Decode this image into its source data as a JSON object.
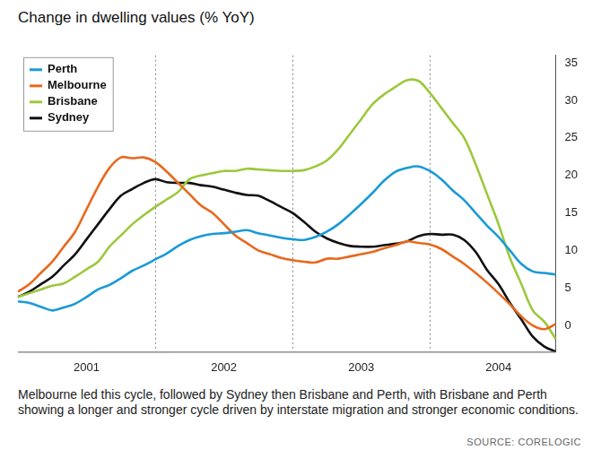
{
  "chart_data": {
    "type": "line",
    "title": "Change in dwelling values (% YoY)",
    "caption": "Melbourne led this cycle, followed by Sydney then Brisbane and Perth, with Brisbane and Perth showing a longer and stronger cycle driven by interstate migration and stronger economic conditions.",
    "source": "SOURCE: CORELOGIC",
    "categories": [
      null,
      null,
      null,
      null,
      null,
      null,
      "2001",
      null,
      null,
      null,
      null,
      null,
      null,
      null,
      null,
      null,
      null,
      null,
      "2002",
      null,
      null,
      null,
      null,
      null,
      null,
      null,
      null,
      null,
      null,
      null,
      "2003",
      null,
      null,
      null,
      null,
      null,
      null,
      null,
      null,
      null,
      null,
      null,
      "2004",
      null,
      null,
      null,
      null,
      null
    ],
    "series": [
      {
        "name": "Perth",
        "color": "#1a9ad6",
        "values": [
          3.2,
          3,
          2.5,
          2,
          2.4,
          2.9,
          3.8,
          4.8,
          5.4,
          6.3,
          7.3,
          8,
          8.8,
          9.6,
          10.6,
          11.4,
          11.9,
          12.2,
          12.3,
          12.5,
          12.7,
          12.3,
          12,
          11.7,
          11.5,
          11.4,
          11.8,
          12.5,
          13.5,
          14.8,
          16.2,
          17.7,
          19.3,
          20.5,
          21,
          21.2,
          20.6,
          19.5,
          18,
          16.7,
          15,
          13.3,
          11.8,
          10,
          8.2,
          7.2,
          7,
          6.8
        ]
      },
      {
        "name": "Melbourne",
        "color": "#e8691e",
        "values": [
          4.5,
          5.5,
          7,
          8.5,
          10.5,
          12.5,
          15.5,
          18.5,
          21,
          22.4,
          22.3,
          22.4,
          21.8,
          20.5,
          19,
          17.5,
          16,
          15,
          13.5,
          12,
          11,
          10,
          9.5,
          9,
          8.7,
          8.5,
          8.4,
          8.9,
          8.9,
          9.2,
          9.5,
          9.8,
          10.3,
          10.7,
          11.2,
          11,
          10.8,
          10.2,
          9.2,
          8.2,
          7,
          5.7,
          4.3,
          2.8,
          1.2,
          0,
          -0.5,
          0.2
        ]
      },
      {
        "name": "Brisbane",
        "color": "#9cc83c",
        "values": [
          3.8,
          4.3,
          4.8,
          5.3,
          5.6,
          6.5,
          7.5,
          8.5,
          10.5,
          12,
          13.5,
          14.7,
          15.8,
          16.8,
          17.8,
          19.5,
          20,
          20.3,
          20.6,
          20.6,
          20.9,
          20.8,
          20.7,
          20.6,
          20.6,
          20.7,
          21.2,
          22,
          23.5,
          25.5,
          27.5,
          29.5,
          30.8,
          31.8,
          32.7,
          32.6,
          31,
          29,
          27,
          25,
          21.5,
          17.5,
          13.5,
          9,
          5.5,
          2,
          0.5,
          -1.8
        ]
      },
      {
        "name": "Sydney",
        "color": "#111111",
        "values": [
          3.8,
          4.5,
          5.5,
          6.5,
          8,
          9.5,
          11.5,
          13.5,
          15.5,
          17.3,
          18.2,
          19,
          19.5,
          19.1,
          19,
          19,
          18.7,
          18.5,
          18.1,
          17.7,
          17.4,
          17.3,
          16.6,
          15.8,
          15,
          13.8,
          12.5,
          11.6,
          11,
          10.6,
          10.5,
          10.5,
          10.7,
          10.9,
          11.2,
          11.9,
          12.2,
          12.1,
          12.1,
          11.4,
          9.8,
          7.4,
          5.5,
          3,
          0.8,
          -1.5,
          -2.8,
          -3.5
        ]
      }
    ],
    "ylim": [
      -3.5,
      36
    ],
    "yticks": [
      0,
      5,
      10,
      15,
      20,
      25,
      30,
      35
    ],
    "grid": true,
    "legend": "top-left"
  }
}
